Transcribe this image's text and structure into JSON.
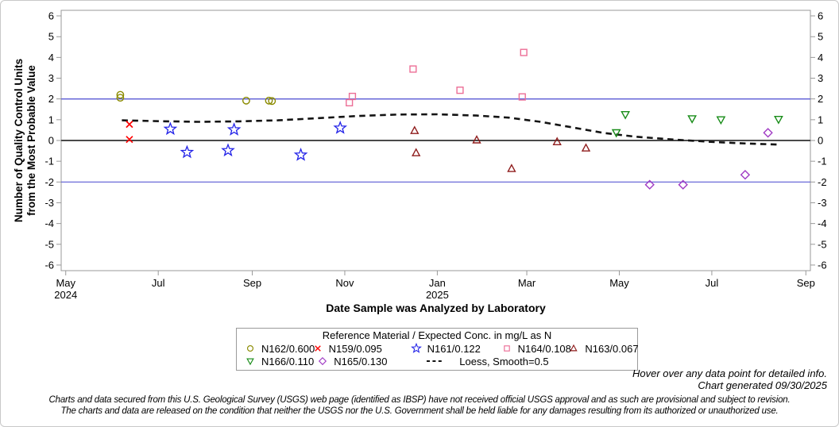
{
  "chart_data": {
    "type": "scatter",
    "xlabel": "Date Sample was Analyzed by Laboratory",
    "ylabel_line1": "Number of Quality Control Units",
    "ylabel_line2": "from the Most Probable Value",
    "ylim": [
      -6,
      6
    ],
    "yticks": [
      -6,
      -5,
      -4,
      -3,
      -2,
      -1,
      0,
      1,
      2,
      3,
      4,
      5,
      6
    ],
    "grid": false,
    "x_axis_note": "x encoded as days since 2024-05-01; axis spans May 2024 to Sep 2025",
    "x_ticks": [
      {
        "d": 0,
        "label": "May",
        "year": "2024"
      },
      {
        "d": 61,
        "label": "Jul"
      },
      {
        "d": 123,
        "label": "Sep"
      },
      {
        "d": 184,
        "label": "Nov"
      },
      {
        "d": 245,
        "label": "Jan",
        "year": "2025"
      },
      {
        "d": 304,
        "label": "Mar"
      },
      {
        "d": 365,
        "label": "May"
      },
      {
        "d": 426,
        "label": "Jul"
      },
      {
        "d": 488,
        "label": "Sep"
      }
    ],
    "reference_lines": [
      {
        "y": 2,
        "color": "#5a5ad5",
        "width": 1.4
      },
      {
        "y": 0,
        "color": "#4a4a4a",
        "width": 2
      },
      {
        "y": -2,
        "color": "#5a5ad5",
        "width": 1.2
      }
    ],
    "legend_title": "Reference Material / Expected Conc. in mg/L as N",
    "series": [
      {
        "name": "N162/0.600",
        "marker": "circle",
        "color": "#8b8b00",
        "points": [
          [
            36,
            2.2
          ],
          [
            36,
            2.06
          ],
          [
            119,
            1.92
          ],
          [
            134,
            1.92
          ],
          [
            136,
            1.9
          ]
        ]
      },
      {
        "name": "N159/0.095",
        "marker": "x",
        "color": "#ff0000",
        "points": [
          [
            42,
            0.78
          ],
          [
            42,
            0.05
          ]
        ]
      },
      {
        "name": "N161/0.122",
        "marker": "star",
        "color": "#2222e8",
        "points": [
          [
            69,
            0.55
          ],
          [
            80,
            -0.57
          ],
          [
            107,
            -0.48
          ],
          [
            111,
            0.52
          ],
          [
            155,
            -0.7
          ],
          [
            181,
            0.6
          ]
        ]
      },
      {
        "name": "N164/0.108",
        "marker": "square",
        "color": "#ec6e96",
        "points": [
          [
            187,
            1.82
          ],
          [
            189,
            2.12
          ],
          [
            229,
            3.44
          ],
          [
            260,
            2.42
          ],
          [
            301,
            2.1
          ],
          [
            302,
            4.24
          ]
        ]
      },
      {
        "name": "N163/0.067",
        "marker": "triangle-up",
        "color": "#8f1d1d",
        "points": [
          [
            230,
            0.47
          ],
          [
            231,
            -0.6
          ],
          [
            271,
            0.02
          ],
          [
            294,
            -1.36
          ],
          [
            324,
            -0.07
          ],
          [
            343,
            -0.37
          ]
        ]
      },
      {
        "name": "N166/0.110",
        "marker": "triangle-down",
        "color": "#188c18",
        "points": [
          [
            363,
            0.38
          ],
          [
            369,
            1.25
          ],
          [
            413,
            1.05
          ],
          [
            432,
            1.0
          ],
          [
            470,
            1.02
          ]
        ]
      },
      {
        "name": "N165/0.130",
        "marker": "diamond",
        "color": "#a03bc4",
        "points": [
          [
            385,
            -2.13
          ],
          [
            407,
            -2.13
          ],
          [
            448,
            -1.65
          ],
          [
            463,
            0.37
          ]
        ]
      }
    ],
    "loess": {
      "label": "Loess, Smooth=0.5",
      "color": "#141414",
      "points": [
        [
          37,
          0.97
        ],
        [
          62,
          0.93
        ],
        [
          88,
          0.9
        ],
        [
          114,
          0.92
        ],
        [
          140,
          0.97
        ],
        [
          167,
          1.08
        ],
        [
          193,
          1.18
        ],
        [
          219,
          1.25
        ],
        [
          245,
          1.26
        ],
        [
          271,
          1.2
        ],
        [
          292,
          1.1
        ],
        [
          313,
          0.9
        ],
        [
          334,
          0.63
        ],
        [
          355,
          0.36
        ],
        [
          376,
          0.18
        ],
        [
          402,
          0.04
        ],
        [
          429,
          -0.08
        ],
        [
          450,
          -0.15
        ],
        [
          471,
          -0.2
        ]
      ]
    }
  },
  "notes": {
    "hover": "Hover over any data point for detailed info.",
    "generated": "Chart generated 09/30/2025"
  },
  "footer": {
    "line1": "Charts and data secured from this U.S. Geological Survey (USGS) web page (identified as IBSP) have not received official USGS approval and as such are provisional and subject to revision.",
    "line2": "The charts and data are released on the condition that neither the USGS nor the U.S. Government shall be held liable for any damages resulting from its authorized or unauthorized use."
  }
}
